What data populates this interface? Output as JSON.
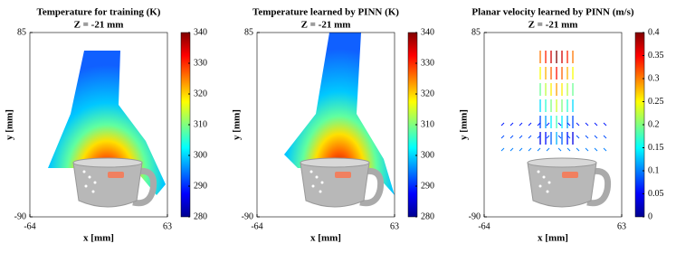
{
  "chart_data": [
    {
      "type": "heatmap",
      "title": "Temperature for training (K)",
      "subtitle": "Z = -21 mm",
      "xlabel": "x [mm]",
      "ylabel": "y [mm]",
      "xlim": [
        -64,
        63
      ],
      "ylim": [
        -90,
        85
      ],
      "xticks": [
        -64,
        63
      ],
      "yticks": [
        -90,
        85
      ],
      "colorbar": {
        "colormap": "jet",
        "lim": [
          280,
          340
        ],
        "ticks": [
          280,
          290,
          300,
          310,
          320,
          330,
          340
        ]
      }
    },
    {
      "type": "heatmap",
      "title": "Temperature learned by PINN (K)",
      "subtitle": "Z = -21 mm",
      "xlabel": "x [mm]",
      "ylabel": "y [mm]",
      "xlim": [
        -64,
        63
      ],
      "ylim": [
        -90,
        85
      ],
      "xticks": [
        -64,
        63
      ],
      "yticks": [
        -90,
        85
      ],
      "colorbar": {
        "colormap": "jet",
        "lim": [
          280,
          340
        ],
        "ticks": [
          280,
          290,
          300,
          310,
          320,
          330,
          340
        ]
      }
    },
    {
      "type": "quiver",
      "title": "Planar velocity learned by PINN (m/s)",
      "subtitle": "Z = -21 mm",
      "xlabel": "x [mm]",
      "ylabel": "y [mm]",
      "xlim": [
        -64,
        63
      ],
      "ylim": [
        -90,
        85
      ],
      "xticks": [
        -64,
        63
      ],
      "yticks": [
        -90,
        85
      ],
      "colorbar": {
        "colormap": "jet",
        "lim": [
          0,
          0.4
        ],
        "ticks": [
          0,
          0.05,
          0.1,
          0.15,
          0.2,
          0.25,
          0.3,
          0.35,
          0.4
        ]
      }
    }
  ]
}
